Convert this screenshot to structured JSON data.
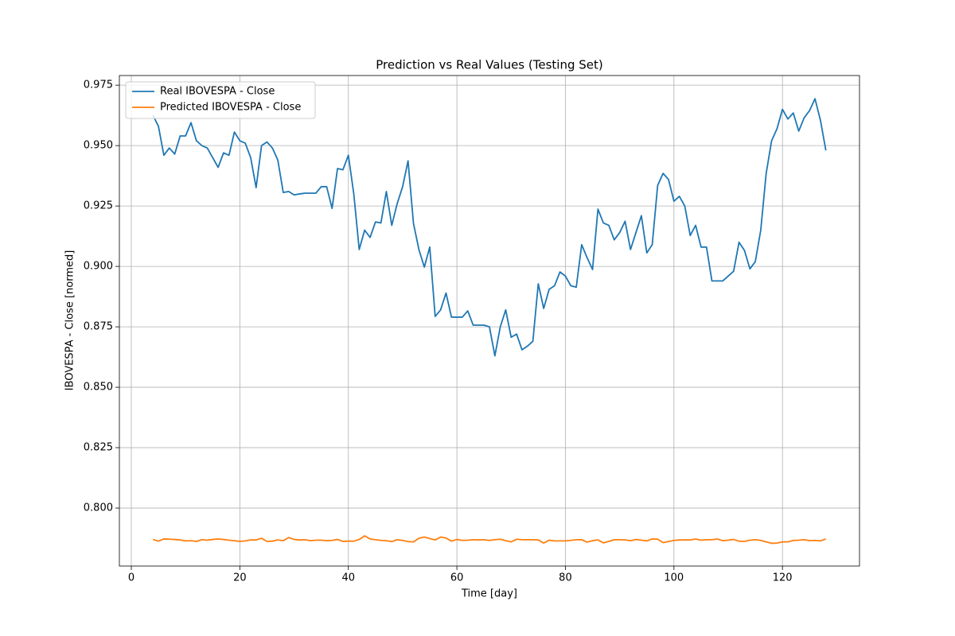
{
  "chart_data": {
    "type": "line",
    "title": "Prediction vs Real Values (Testing Set)",
    "x_label": "Time [day]",
    "y_label": "IBOVESPA - Close [normed]",
    "x": [
      4,
      5,
      6,
      7,
      8,
      9,
      10,
      11,
      12,
      13,
      14,
      15,
      16,
      17,
      18,
      19,
      20,
      21,
      22,
      23,
      24,
      25,
      26,
      27,
      28,
      29,
      30,
      31,
      32,
      33,
      34,
      35,
      36,
      37,
      38,
      39,
      40,
      41,
      42,
      43,
      44,
      45,
      46,
      47,
      48,
      49,
      50,
      51,
      52,
      53,
      54,
      55,
      56,
      57,
      58,
      59,
      60,
      61,
      62,
      63,
      64,
      65,
      66,
      67,
      68,
      69,
      70,
      71,
      72,
      73,
      74,
      75,
      76,
      77,
      78,
      79,
      80,
      81,
      82,
      83,
      84,
      85,
      86,
      87,
      88,
      89,
      90,
      91,
      92,
      93,
      94,
      95,
      96,
      97,
      98,
      99,
      100,
      101,
      102,
      103,
      104,
      105,
      106,
      107,
      108,
      109,
      110,
      111,
      112,
      113,
      114,
      115,
      116,
      117,
      118,
      119,
      120,
      121,
      122,
      123,
      124,
      125,
      126,
      127,
      128
    ],
    "series": [
      {
        "name": "Real IBOVESPA - Close",
        "color": "#1f77b4",
        "values": [
          0.9625,
          0.958,
          0.946,
          0.949,
          0.9465,
          0.954,
          0.954,
          0.9595,
          0.952,
          0.95,
          0.949,
          0.945,
          0.941,
          0.947,
          0.946,
          0.9556,
          0.952,
          0.951,
          0.945,
          0.9326,
          0.95,
          0.9515,
          0.949,
          0.944,
          0.9306,
          0.931,
          0.9296,
          0.93,
          0.9303,
          0.9303,
          0.9303,
          0.933,
          0.933,
          0.924,
          0.9405,
          0.94,
          0.946,
          0.93,
          0.907,
          0.915,
          0.912,
          0.9184,
          0.918,
          0.931,
          0.917,
          0.926,
          0.933,
          0.9437,
          0.9178,
          0.907,
          0.8997,
          0.908,
          0.8793,
          0.882,
          0.889,
          0.879,
          0.879,
          0.879,
          0.8816,
          0.8757,
          0.8757,
          0.8757,
          0.875,
          0.863,
          0.875,
          0.882,
          0.8707,
          0.872,
          0.8655,
          0.867,
          0.869,
          0.8928,
          0.8826,
          0.8905,
          0.892,
          0.8977,
          0.896,
          0.892,
          0.8914,
          0.909,
          0.9036,
          0.8987,
          0.9237,
          0.918,
          0.917,
          0.911,
          0.914,
          0.9187,
          0.907,
          0.914,
          0.921,
          0.9056,
          0.909,
          0.9335,
          0.9385,
          0.936,
          0.927,
          0.929,
          0.925,
          0.9128,
          0.917,
          0.908,
          0.908,
          0.894,
          0.894,
          0.894,
          0.896,
          0.898,
          0.91,
          0.9066,
          0.899,
          0.902,
          0.915,
          0.9385,
          0.952,
          0.957,
          0.965,
          0.961,
          0.9635,
          0.956,
          0.9615,
          0.9645,
          0.9694,
          0.9605,
          0.948
        ]
      },
      {
        "name": "Predicted IBOVESPA - Close",
        "color": "#ff7f0e",
        "values": [
          0.787,
          0.7863,
          0.7872,
          0.7871,
          0.787,
          0.7868,
          0.7864,
          0.7865,
          0.7862,
          0.7869,
          0.7867,
          0.787,
          0.7872,
          0.787,
          0.7867,
          0.7865,
          0.7862,
          0.7864,
          0.7868,
          0.7868,
          0.7875,
          0.7862,
          0.7863,
          0.7868,
          0.7865,
          0.7878,
          0.787,
          0.7868,
          0.7869,
          0.7865,
          0.7867,
          0.7867,
          0.7865,
          0.7866,
          0.787,
          0.7862,
          0.7863,
          0.7863,
          0.787,
          0.7885,
          0.7872,
          0.7869,
          0.7866,
          0.7865,
          0.7861,
          0.7869,
          0.7866,
          0.7861,
          0.786,
          0.7875,
          0.788,
          0.7874,
          0.7868,
          0.788,
          0.7876,
          0.7863,
          0.787,
          0.7866,
          0.7867,
          0.7869,
          0.7868,
          0.7869,
          0.7866,
          0.7869,
          0.7871,
          0.7865,
          0.786,
          0.7871,
          0.7869,
          0.7869,
          0.7869,
          0.7868,
          0.7855,
          0.7867,
          0.7864,
          0.7864,
          0.7864,
          0.7866,
          0.7869,
          0.7869,
          0.7859,
          0.7865,
          0.7868,
          0.7856,
          0.7862,
          0.7869,
          0.7869,
          0.7868,
          0.7865,
          0.787,
          0.7867,
          0.7864,
          0.7872,
          0.7871,
          0.7857,
          0.7861,
          0.7866,
          0.7868,
          0.7868,
          0.7868,
          0.7872,
          0.7867,
          0.7869,
          0.7869,
          0.7872,
          0.7865,
          0.7867,
          0.787,
          0.7863,
          0.7862,
          0.7867,
          0.7869,
          0.7866,
          0.786,
          0.7854,
          0.7855,
          0.786,
          0.786,
          0.7866,
          0.7867,
          0.7869,
          0.7865,
          0.7866,
          0.7864,
          0.7872
        ]
      }
    ],
    "xlim": [
      -2.2,
      134.2
    ],
    "ylim": [
      0.776,
      0.979
    ],
    "xticks": [
      0,
      20,
      40,
      60,
      80,
      100,
      120
    ],
    "yticks": [
      {
        "value": 0.8,
        "label": "0.800"
      },
      {
        "value": 0.825,
        "label": "0.825"
      },
      {
        "value": 0.85,
        "label": "0.850"
      },
      {
        "value": 0.875,
        "label": "0.875"
      },
      {
        "value": 0.9,
        "label": "0.900"
      },
      {
        "value": 0.925,
        "label": "0.925"
      },
      {
        "value": 0.95,
        "label": "0.950"
      },
      {
        "value": 0.975,
        "label": "0.975"
      }
    ],
    "grid": true,
    "legend": "upper left"
  }
}
